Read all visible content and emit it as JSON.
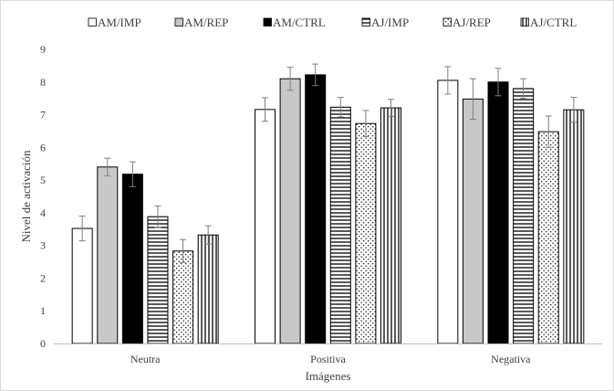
{
  "chart_data": {
    "type": "bar",
    "title": "",
    "xlabel": "Imágenes",
    "ylabel": "Nivel de activación",
    "ylim": [
      0,
      9
    ],
    "yticks": [
      0,
      1,
      2,
      3,
      4,
      5,
      6,
      7,
      8,
      9
    ],
    "grid": false,
    "legend_position": "top",
    "categories": [
      "Neutra",
      "Positiva",
      "Negativa"
    ],
    "series": [
      {
        "name": "AM/IMP",
        "values": [
          3.52,
          7.16,
          8.05
        ],
        "errors": [
          0.38,
          0.36,
          0.42
        ],
        "fill": "white",
        "color": "#ffffff"
      },
      {
        "name": "AM/REP",
        "values": [
          5.4,
          8.1,
          7.48
        ],
        "errors": [
          0.27,
          0.35,
          0.62
        ],
        "fill": "gray",
        "color": "#c8c8c8"
      },
      {
        "name": "AM/CTRL",
        "values": [
          5.18,
          8.22,
          8.0
        ],
        "errors": [
          0.38,
          0.33,
          0.42
        ],
        "fill": "black",
        "color": "#000000"
      },
      {
        "name": "AJ/IMP",
        "values": [
          3.88,
          7.23,
          7.8
        ],
        "errors": [
          0.33,
          0.3,
          0.3
        ],
        "fill": "horizontal",
        "color": "#000000"
      },
      {
        "name": "AJ/REP",
        "values": [
          2.83,
          6.73,
          6.48
        ],
        "errors": [
          0.35,
          0.4,
          0.48
        ],
        "fill": "dots",
        "color": "#000000"
      },
      {
        "name": "AJ/CTRL",
        "values": [
          3.32,
          7.21,
          7.15
        ],
        "errors": [
          0.28,
          0.26,
          0.38
        ],
        "fill": "vertical",
        "color": "#000000"
      }
    ]
  }
}
